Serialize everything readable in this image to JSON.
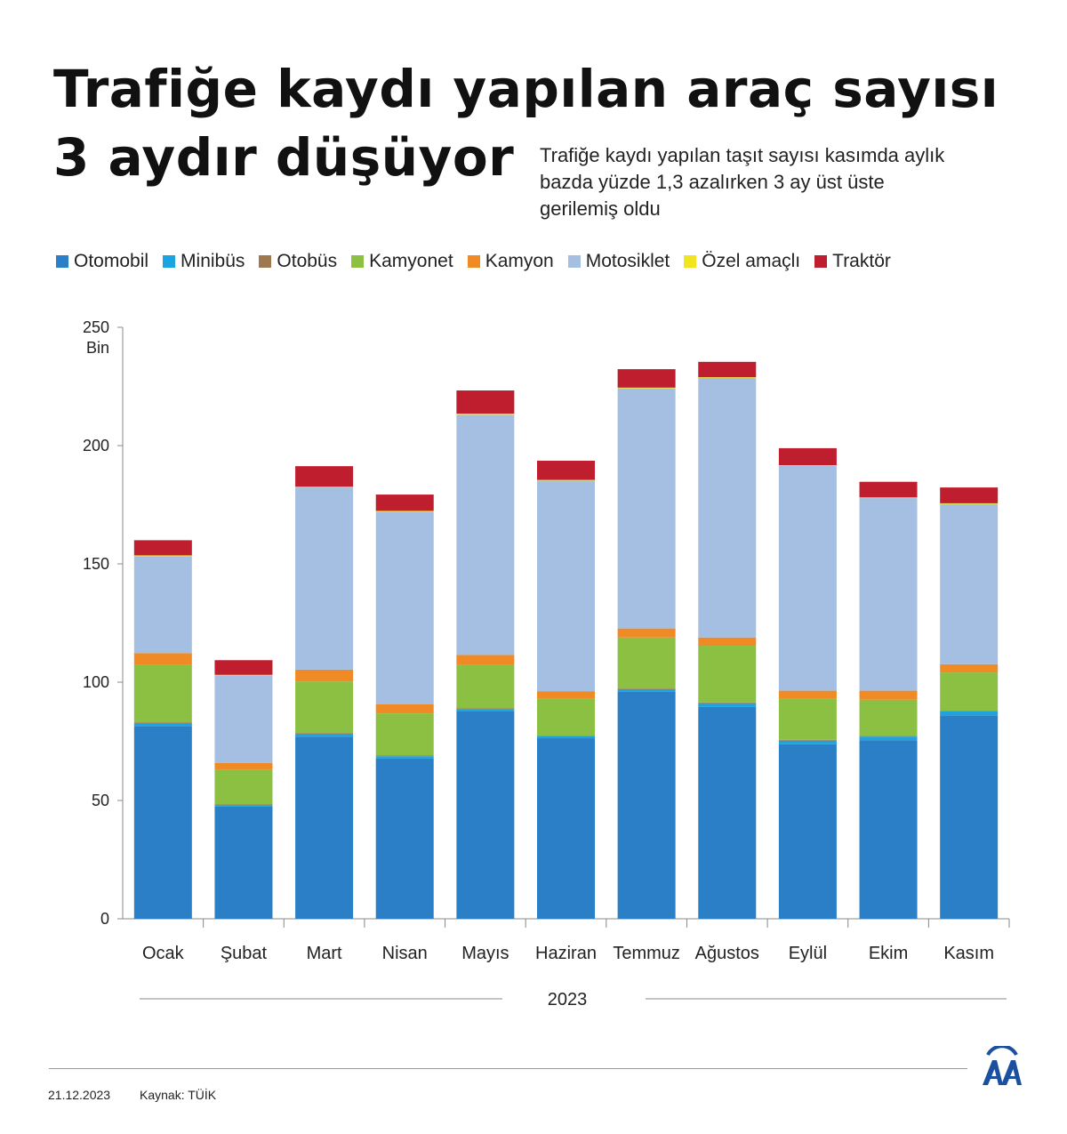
{
  "title_line1": "Trafiğe kaydı yapılan araç sayısı",
  "title_line2": "3 aydır düşüyor",
  "subtitle": "Trafiğe kaydı yapılan taşıt sayısı kasımda aylık bazda yüzde 1,3 azalırken 3 ay üst üste gerilemiş oldu",
  "footer": {
    "date": "21.12.2023",
    "source": "Kaynak: TÜİK",
    "logo_text": "AA"
  },
  "chart_data": {
    "type": "bar",
    "stacked": true,
    "title": "Trafiğe kaydı yapılan araç sayısı",
    "xlabel": "2023",
    "ylabel": "Bin",
    "ylim": [
      0,
      250
    ],
    "yticks": [
      0,
      50,
      100,
      150,
      200,
      250
    ],
    "legend_position": "top",
    "categories": [
      "Ocak",
      "Şubat",
      "Mart",
      "Nisan",
      "Mayıs",
      "Haziran",
      "Temmuz",
      "Ağustos",
      "Eylül",
      "Ekim",
      "Kasım"
    ],
    "series": [
      {
        "name": "Otomobil",
        "color": "#2a7fc6",
        "values": [
          81.5,
          47.4,
          77,
          67.7,
          87.6,
          76.3,
          96,
          89.5,
          73.8,
          75.5,
          86
        ]
      },
      {
        "name": "Minibüs",
        "color": "#1aa4e0",
        "values": [
          1.2,
          0.7,
          1.2,
          1,
          1,
          0.8,
          1,
          1.6,
          1.5,
          1.5,
          1.6
        ]
      },
      {
        "name": "Otobüs",
        "color": "#a07850",
        "values": [
          0.3,
          0.2,
          0.3,
          0.3,
          0.3,
          0.3,
          0.3,
          0.3,
          0.3,
          0.3,
          0.3
        ]
      },
      {
        "name": "Kamyonet",
        "color": "#8bc043",
        "values": [
          24.5,
          14.6,
          21.8,
          17.8,
          18.6,
          15.8,
          21.6,
          24,
          17.3,
          15.3,
          16.2
        ]
      },
      {
        "name": "Kamyon",
        "color": "#f08a24",
        "values": [
          4.8,
          3,
          5,
          3.8,
          4,
          3,
          3.8,
          3.5,
          3.5,
          3.8,
          3.5
        ]
      },
      {
        "name": "Motosiklet",
        "color": "#a5bfe3",
        "values": [
          41,
          37,
          77,
          81.5,
          101.5,
          89,
          101.5,
          109.7,
          95,
          81.4,
          67.7
        ]
      },
      {
        "name": "Özel amaçlı",
        "color": "#f2e51f",
        "values": [
          0.3,
          0.2,
          0.3,
          0.3,
          0.5,
          0.3,
          0.3,
          0.3,
          0.3,
          0.3,
          0.3
        ]
      },
      {
        "name": "Traktör",
        "color": "#be1e2d",
        "values": [
          6.4,
          6.2,
          8.7,
          6.9,
          9.8,
          8.1,
          7.8,
          6.5,
          7.2,
          6.6,
          6.7
        ]
      }
    ]
  }
}
